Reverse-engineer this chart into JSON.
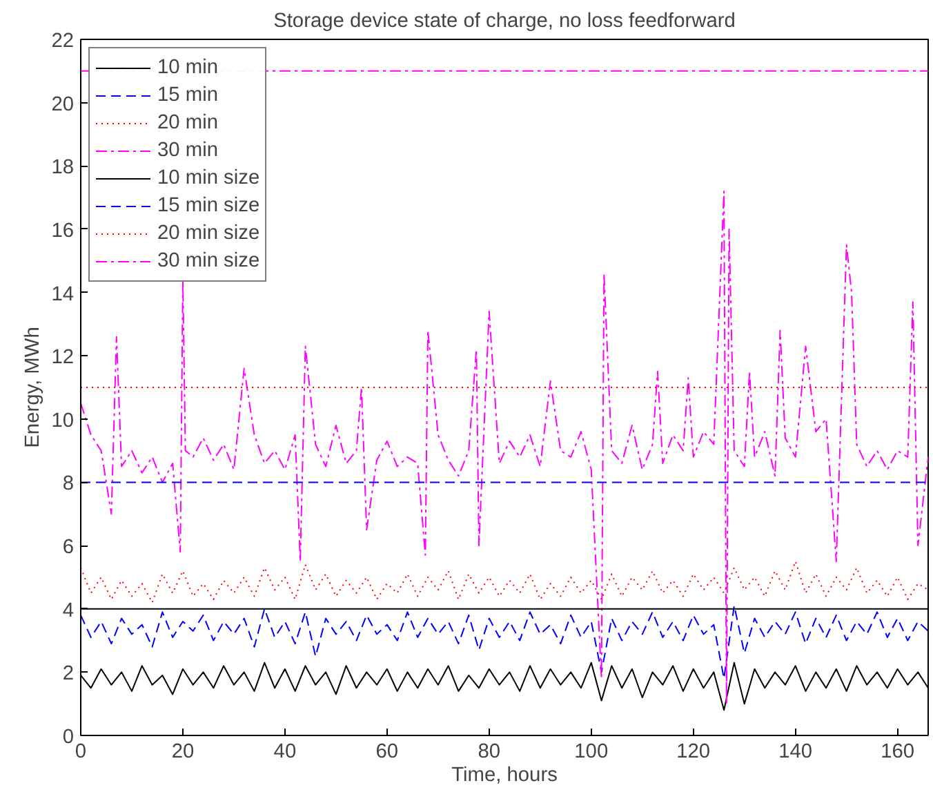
{
  "chart_data": {
    "type": "line",
    "title": "Storage device state of charge, no loss feedforward",
    "xlabel": "Time, hours",
    "ylabel": "Energy, MWh",
    "xlim": [
      0,
      166
    ],
    "ylim": [
      0,
      22
    ],
    "xticks": [
      0,
      20,
      40,
      60,
      80,
      100,
      120,
      140,
      160
    ],
    "yticks": [
      0,
      2,
      4,
      6,
      8,
      10,
      12,
      14,
      16,
      18,
      20,
      22
    ],
    "grid": false,
    "legend": "top left",
    "series": [
      {
        "name": "10 min",
        "color": "#000000",
        "line_style": "solid",
        "x": [
          0,
          2,
          4,
          6,
          8,
          10,
          12,
          14,
          16,
          18,
          20,
          22,
          24,
          26,
          28,
          30,
          32,
          34,
          36,
          38,
          40,
          42,
          44,
          46,
          48,
          50,
          52,
          54,
          56,
          58,
          60,
          62,
          64,
          66,
          68,
          70,
          72,
          74,
          76,
          78,
          80,
          82,
          84,
          86,
          88,
          90,
          92,
          94,
          96,
          98,
          100,
          102,
          104,
          106,
          108,
          110,
          112,
          114,
          116,
          118,
          120,
          122,
          124,
          126,
          128,
          130,
          132,
          134,
          136,
          138,
          140,
          142,
          144,
          146,
          148,
          150,
          152,
          154,
          156,
          158,
          160,
          162,
          164,
          166
        ],
        "values": [
          1.9,
          1.5,
          2.1,
          1.6,
          2.0,
          1.4,
          2.2,
          1.6,
          1.9,
          1.3,
          2.1,
          1.6,
          2.0,
          1.5,
          2.2,
          1.6,
          2.0,
          1.4,
          2.3,
          1.5,
          2.1,
          1.4,
          2.2,
          1.6,
          2.0,
          1.3,
          2.2,
          1.5,
          2.0,
          1.6,
          2.1,
          1.4,
          2.0,
          1.5,
          2.1,
          1.6,
          2.2,
          1.4,
          1.9,
          1.5,
          2.1,
          1.6,
          2.0,
          1.4,
          2.2,
          1.5,
          2.1,
          1.6,
          2.0,
          1.5,
          2.3,
          1.1,
          2.2,
          1.5,
          2.1,
          1.2,
          2.0,
          1.6,
          2.2,
          1.4,
          2.1,
          1.5,
          2.0,
          0.8,
          2.3,
          1.0,
          2.1,
          1.5,
          2.0,
          1.6,
          2.2,
          1.4,
          2.0,
          1.5,
          2.1,
          1.4,
          2.2,
          1.6,
          2.0,
          1.5,
          2.1,
          1.6,
          2.0,
          1.5
        ]
      },
      {
        "name": "15 min",
        "color": "#0000ff",
        "line_style": "dashed",
        "x": [
          0,
          2,
          4,
          6,
          8,
          10,
          12,
          14,
          16,
          18,
          20,
          22,
          24,
          26,
          28,
          30,
          32,
          34,
          36,
          38,
          40,
          42,
          44,
          46,
          48,
          50,
          52,
          54,
          56,
          58,
          60,
          62,
          64,
          66,
          68,
          70,
          72,
          74,
          76,
          78,
          80,
          82,
          84,
          86,
          88,
          90,
          92,
          94,
          96,
          98,
          100,
          102,
          104,
          106,
          108,
          110,
          112,
          114,
          116,
          118,
          120,
          122,
          124,
          126,
          128,
          130,
          132,
          134,
          136,
          138,
          140,
          142,
          144,
          146,
          148,
          150,
          152,
          154,
          156,
          158,
          160,
          162,
          164,
          166
        ],
        "values": [
          3.8,
          3.1,
          3.6,
          2.9,
          3.7,
          3.2,
          3.5,
          2.8,
          3.9,
          3.1,
          3.6,
          3.3,
          3.8,
          3.0,
          3.6,
          3.2,
          3.7,
          2.8,
          4.0,
          3.1,
          3.6,
          2.9,
          3.9,
          2.5,
          3.7,
          3.2,
          3.6,
          3.0,
          3.8,
          3.2,
          3.5,
          3.0,
          3.9,
          3.1,
          3.7,
          3.2,
          3.6,
          2.9,
          3.8,
          2.7,
          3.7,
          3.1,
          3.6,
          3.0,
          3.9,
          3.2,
          3.5,
          2.9,
          3.8,
          3.1,
          3.6,
          2.0,
          3.7,
          3.0,
          3.6,
          3.2,
          3.9,
          3.1,
          3.6,
          3.0,
          3.8,
          3.2,
          3.5,
          1.8,
          4.1,
          2.6,
          3.7,
          3.1,
          3.6,
          3.2,
          3.9,
          2.9,
          3.7,
          3.1,
          3.8,
          3.0,
          3.6,
          3.2,
          3.9,
          3.1,
          3.7,
          3.0,
          3.6,
          3.3
        ]
      },
      {
        "name": "20 min",
        "color": "#ff0000",
        "line_style": "dotted",
        "x": [
          0,
          2,
          4,
          6,
          8,
          10,
          12,
          14,
          16,
          18,
          20,
          22,
          24,
          26,
          28,
          30,
          32,
          34,
          36,
          38,
          40,
          42,
          44,
          46,
          48,
          50,
          52,
          54,
          56,
          58,
          60,
          62,
          64,
          66,
          68,
          70,
          72,
          74,
          76,
          78,
          80,
          82,
          84,
          86,
          88,
          90,
          92,
          94,
          96,
          98,
          100,
          102,
          104,
          106,
          108,
          110,
          112,
          114,
          116,
          118,
          120,
          122,
          124,
          126,
          128,
          130,
          132,
          134,
          136,
          138,
          140,
          142,
          144,
          146,
          148,
          150,
          152,
          154,
          156,
          158,
          160,
          162,
          164,
          166
        ],
        "values": [
          5.3,
          4.5,
          5.0,
          4.3,
          4.9,
          4.4,
          4.8,
          4.2,
          5.1,
          4.5,
          5.2,
          4.4,
          4.8,
          4.3,
          4.9,
          4.5,
          5.0,
          4.4,
          5.3,
          4.6,
          5.0,
          4.3,
          5.4,
          4.6,
          5.1,
          4.4,
          4.9,
          4.5,
          5.0,
          4.3,
          4.8,
          4.5,
          5.1,
          4.4,
          5.0,
          4.6,
          5.2,
          4.3,
          5.1,
          4.5,
          5.0,
          4.4,
          4.9,
          4.5,
          5.1,
          4.3,
          4.8,
          4.4,
          5.0,
          4.5,
          4.9,
          4.3,
          5.1,
          4.4,
          5.0,
          4.6,
          5.2,
          4.5,
          4.9,
          4.4,
          5.1,
          4.6,
          5.0,
          4.5,
          5.3,
          4.6,
          5.0,
          4.4,
          5.2,
          4.6,
          5.5,
          4.5,
          5.1,
          4.4,
          5.0,
          4.6,
          5.3,
          4.5,
          4.9,
          4.4,
          5.0,
          4.3,
          4.8,
          4.6
        ]
      },
      {
        "name": "30 min",
        "color": "#ff00ff",
        "line_style": "dashdot",
        "x": [
          0,
          2,
          4,
          6,
          7,
          8,
          10,
          12,
          14,
          16,
          18,
          19.5,
          20,
          20.5,
          22,
          24,
          26,
          28,
          30,
          32,
          34,
          36,
          38,
          40,
          42,
          43,
          44,
          46,
          48,
          50,
          52,
          54,
          55,
          56,
          58,
          60,
          62,
          64,
          66,
          67.5,
          68,
          70,
          72,
          74,
          76,
          77.5,
          78,
          80,
          82,
          84,
          86,
          88,
          90,
          92,
          94,
          96,
          98,
          100,
          102,
          102.5,
          104,
          106,
          108,
          110,
          112,
          113,
          114,
          116,
          118,
          119,
          120,
          122,
          124,
          126,
          126.5,
          127,
          128,
          130,
          131,
          132,
          134,
          136,
          137,
          138,
          140,
          142,
          144,
          146,
          148,
          150,
          151,
          152,
          154,
          156,
          158,
          160,
          162,
          163,
          164,
          166
        ],
        "values": [
          10.5,
          9.5,
          9.0,
          7.0,
          12.6,
          8.5,
          9.0,
          8.3,
          8.8,
          8.0,
          8.6,
          5.8,
          14.4,
          9.0,
          8.8,
          9.4,
          8.7,
          9.2,
          8.4,
          11.6,
          9.5,
          8.6,
          9.0,
          8.4,
          9.5,
          5.5,
          12.3,
          9.2,
          8.5,
          9.8,
          8.6,
          9.0,
          11.0,
          6.5,
          8.7,
          9.3,
          8.5,
          8.8,
          8.6,
          5.7,
          12.8,
          9.5,
          8.7,
          8.2,
          9.0,
          12.2,
          6.0,
          13.4,
          8.6,
          9.3,
          8.8,
          9.5,
          8.5,
          11.2,
          9.0,
          8.8,
          9.6,
          8.4,
          1.8,
          14.6,
          9.0,
          8.6,
          9.8,
          8.4,
          9.2,
          11.5,
          8.6,
          9.5,
          9.0,
          11.3,
          8.8,
          9.6,
          9.2,
          17.2,
          1.0,
          16.0,
          9.0,
          8.5,
          11.5,
          8.8,
          9.6,
          8.2,
          12.8,
          9.4,
          8.8,
          12.3,
          9.6,
          10.0,
          5.5,
          15.5,
          14.0,
          9.2,
          8.5,
          9.0,
          8.4,
          9.0,
          8.8,
          13.7,
          6.0,
          8.8
        ]
      },
      {
        "name": "10 min size",
        "color": "#000000",
        "line_style": "solid",
        "x": [
          0,
          166
        ],
        "values": [
          4,
          4
        ]
      },
      {
        "name": "15 min size",
        "color": "#0000ff",
        "line_style": "dashed",
        "x": [
          0,
          166
        ],
        "values": [
          8,
          8
        ]
      },
      {
        "name": "20 min size",
        "color": "#ff0000",
        "line_style": "dotted",
        "x": [
          0,
          166
        ],
        "values": [
          11,
          11
        ]
      },
      {
        "name": "30 min size",
        "color": "#ff00ff",
        "line_style": "dashdot",
        "x": [
          0,
          166
        ],
        "values": [
          21,
          21
        ]
      }
    ]
  }
}
